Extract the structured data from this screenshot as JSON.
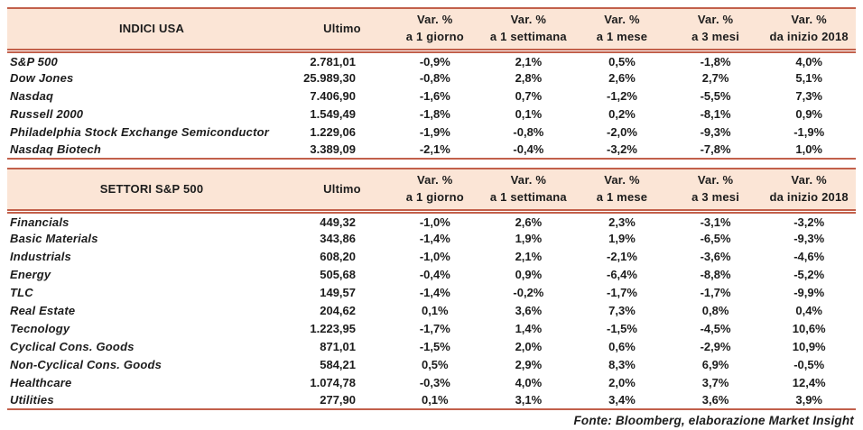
{
  "columns": {
    "ultimo": "Ultimo",
    "var_label": "Var. %",
    "periods": [
      "a 1 giorno",
      "a 1 settimana",
      "a 1 mese",
      "a 3 mesi",
      "da inizio 2018"
    ]
  },
  "tables": [
    {
      "title": "INDICI USA",
      "rows": [
        {
          "label": "S&P 500",
          "ultimo": "2.781,01",
          "vars": [
            "-0,9%",
            "2,1%",
            "0,5%",
            "-1,8%",
            "4,0%"
          ]
        },
        {
          "label": "Dow Jones",
          "ultimo": "25.989,30",
          "vars": [
            "-0,8%",
            "2,8%",
            "2,6%",
            "2,7%",
            "5,1%"
          ]
        },
        {
          "label": "Nasdaq",
          "ultimo": "7.406,90",
          "vars": [
            "-1,6%",
            "0,7%",
            "-1,2%",
            "-5,5%",
            "7,3%"
          ]
        },
        {
          "label": "Russell 2000",
          "ultimo": "1.549,49",
          "vars": [
            "-1,8%",
            "0,1%",
            "0,2%",
            "-8,1%",
            "0,9%"
          ]
        },
        {
          "label": "Philadelphia Stock Exchange Semiconductor",
          "ultimo": "1.229,06",
          "vars": [
            "-1,9%",
            "-0,8%",
            "-2,0%",
            "-9,3%",
            "-1,9%"
          ]
        },
        {
          "label": "Nasdaq Biotech",
          "ultimo": "3.389,09",
          "vars": [
            "-2,1%",
            "-0,4%",
            "-3,2%",
            "-7,8%",
            "1,0%"
          ]
        }
      ]
    },
    {
      "title": "SETTORI S&P 500",
      "rows": [
        {
          "label": "Financials",
          "ultimo": "449,32",
          "vars": [
            "-1,0%",
            "2,6%",
            "2,3%",
            "-3,1%",
            "-3,2%"
          ]
        },
        {
          "label": "Basic Materials",
          "ultimo": "343,86",
          "vars": [
            "-1,4%",
            "1,9%",
            "1,9%",
            "-6,5%",
            "-9,3%"
          ]
        },
        {
          "label": "Industrials",
          "ultimo": "608,20",
          "vars": [
            "-1,0%",
            "2,1%",
            "-2,1%",
            "-3,6%",
            "-4,6%"
          ]
        },
        {
          "label": "Energy",
          "ultimo": "505,68",
          "vars": [
            "-0,4%",
            "0,9%",
            "-6,4%",
            "-8,8%",
            "-5,2%"
          ]
        },
        {
          "label": "TLC",
          "ultimo": "149,57",
          "vars": [
            "-1,4%",
            "-0,2%",
            "-1,7%",
            "-1,7%",
            "-9,9%"
          ]
        },
        {
          "label": "Real Estate",
          "ultimo": "204,62",
          "vars": [
            "0,1%",
            "3,6%",
            "7,3%",
            "0,8%",
            "0,4%"
          ]
        },
        {
          "label": "Tecnology",
          "ultimo": "1.223,95",
          "vars": [
            "-1,7%",
            "1,4%",
            "-1,5%",
            "-4,5%",
            "10,6%"
          ]
        },
        {
          "label": "Cyclical Cons. Goods",
          "ultimo": "871,01",
          "vars": [
            "-1,5%",
            "2,0%",
            "0,6%",
            "-2,9%",
            "10,9%"
          ]
        },
        {
          "label": "Non-Cyclical Cons. Goods",
          "ultimo": "584,21",
          "vars": [
            "0,5%",
            "2,9%",
            "8,3%",
            "6,9%",
            "-0,5%"
          ]
        },
        {
          "label": "Healthcare",
          "ultimo": "1.074,78",
          "vars": [
            "-0,3%",
            "4,0%",
            "2,0%",
            "3,7%",
            "12,4%"
          ]
        },
        {
          "label": "Utilities",
          "ultimo": "277,90",
          "vars": [
            "0,1%",
            "3,1%",
            "3,4%",
            "3,6%",
            "3,9%"
          ]
        }
      ]
    }
  ],
  "footer": {
    "source": "Fonte: Bloomberg, elaborazione Market Insight"
  },
  "colors": {
    "header_fill": "#fbe5d6",
    "border_red": "#c2604b",
    "text": "#1c1c1c"
  },
  "chart_data": [
    {
      "type": "table",
      "title": "INDICI USA",
      "columns": [
        "Ultimo",
        "Var. % a 1 giorno",
        "Var. % a 1 settimana",
        "Var. % a 1 mese",
        "Var. % a 3 mesi",
        "Var. % da inizio 2018"
      ],
      "rows": [
        {
          "name": "S&P 500",
          "ultimo": 2781.01,
          "var_pct": [
            -0.9,
            2.1,
            0.5,
            -1.8,
            4.0
          ]
        },
        {
          "name": "Dow Jones",
          "ultimo": 25989.3,
          "var_pct": [
            -0.8,
            2.8,
            2.6,
            2.7,
            5.1
          ]
        },
        {
          "name": "Nasdaq",
          "ultimo": 7406.9,
          "var_pct": [
            -1.6,
            0.7,
            -1.2,
            -5.5,
            7.3
          ]
        },
        {
          "name": "Russell 2000",
          "ultimo": 1549.49,
          "var_pct": [
            -1.8,
            0.1,
            0.2,
            -8.1,
            0.9
          ]
        },
        {
          "name": "Philadelphia Stock Exchange Semiconductor",
          "ultimo": 1229.06,
          "var_pct": [
            -1.9,
            -0.8,
            -2.0,
            -9.3,
            -1.9
          ]
        },
        {
          "name": "Nasdaq Biotech",
          "ultimo": 3389.09,
          "var_pct": [
            -2.1,
            -0.4,
            -3.2,
            -7.8,
            1.0
          ]
        }
      ]
    },
    {
      "type": "table",
      "title": "SETTORI S&P 500",
      "columns": [
        "Ultimo",
        "Var. % a 1 giorno",
        "Var. % a 1 settimana",
        "Var. % a 1 mese",
        "Var. % a 3 mesi",
        "Var. % da inizio 2018"
      ],
      "rows": [
        {
          "name": "Financials",
          "ultimo": 449.32,
          "var_pct": [
            -1.0,
            2.6,
            2.3,
            -3.1,
            -3.2
          ]
        },
        {
          "name": "Basic Materials",
          "ultimo": 343.86,
          "var_pct": [
            -1.4,
            1.9,
            1.9,
            -6.5,
            -9.3
          ]
        },
        {
          "name": "Industrials",
          "ultimo": 608.2,
          "var_pct": [
            -1.0,
            2.1,
            -2.1,
            -3.6,
            -4.6
          ]
        },
        {
          "name": "Energy",
          "ultimo": 505.68,
          "var_pct": [
            -0.4,
            0.9,
            -6.4,
            -8.8,
            -5.2
          ]
        },
        {
          "name": "TLC",
          "ultimo": 149.57,
          "var_pct": [
            -1.4,
            -0.2,
            -1.7,
            -1.7,
            -9.9
          ]
        },
        {
          "name": "Real Estate",
          "ultimo": 204.62,
          "var_pct": [
            0.1,
            3.6,
            7.3,
            0.8,
            0.4
          ]
        },
        {
          "name": "Tecnology",
          "ultimo": 1223.95,
          "var_pct": [
            -1.7,
            1.4,
            -1.5,
            -4.5,
            10.6
          ]
        },
        {
          "name": "Cyclical Cons. Goods",
          "ultimo": 871.01,
          "var_pct": [
            -1.5,
            2.0,
            0.6,
            -2.9,
            10.9
          ]
        },
        {
          "name": "Non-Cyclical Cons. Goods",
          "ultimo": 584.21,
          "var_pct": [
            0.5,
            2.9,
            8.3,
            6.9,
            -0.5
          ]
        },
        {
          "name": "Healthcare",
          "ultimo": 1074.78,
          "var_pct": [
            -0.3,
            4.0,
            2.0,
            3.7,
            12.4
          ]
        },
        {
          "name": "Utilities",
          "ultimo": 277.9,
          "var_pct": [
            0.1,
            3.1,
            3.4,
            3.6,
            3.9
          ]
        }
      ]
    }
  ]
}
